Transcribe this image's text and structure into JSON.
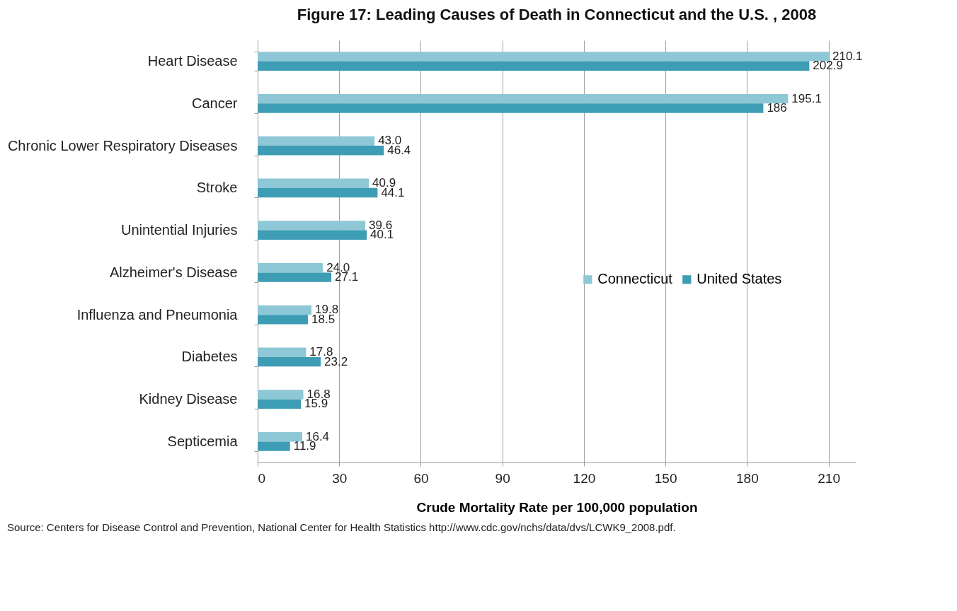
{
  "chart_data": {
    "type": "bar",
    "orientation": "horizontal",
    "title": "Figure 17: Leading Causes of Death in Connecticut and the U.S. , 2008",
    "xlabel": "Crude Mortality Rate per 100,000 population",
    "categories": [
      "Heart Disease",
      "Cancer",
      "Chronic Lower Respiratory Diseases",
      "Stroke",
      "Unintential Injuries",
      "Alzheimer's Disease",
      "Influenza and Pneumonia",
      "Diabetes",
      "Kidney Disease",
      "Septicemia"
    ],
    "series": [
      {
        "name": "Connecticut",
        "color": "#8ec7d6",
        "values": [
          210.1,
          195.1,
          43.0,
          40.9,
          39.6,
          24.0,
          19.8,
          17.8,
          16.8,
          16.4
        ],
        "value_labels": [
          "210.1",
          "195.1",
          "43.0",
          "40.9",
          "39.6",
          "24.0",
          "19.8",
          "17.8",
          "16.8",
          "16.4"
        ]
      },
      {
        "name": "United States",
        "color": "#3d9db4",
        "values": [
          202.9,
          186,
          46.4,
          44.1,
          40.1,
          27.1,
          18.5,
          23.2,
          15.9,
          11.9
        ],
        "value_labels": [
          "202.9",
          "186",
          "46.4",
          "44.1",
          "40.1",
          "27.1",
          "18.5",
          "23.2",
          "15.9",
          "11.9"
        ]
      }
    ],
    "xlim": [
      0,
      220
    ],
    "xticks": [
      0,
      30,
      60,
      90,
      120,
      150,
      180,
      210
    ],
    "grid": "x",
    "legend": "right",
    "annotations": [
      "Source: Centers for Disease Control and Prevention, National Center for Health Statistics http://www.cdc.gov/nchs/data/dvs/LCWK9_2008.pdf."
    ]
  }
}
